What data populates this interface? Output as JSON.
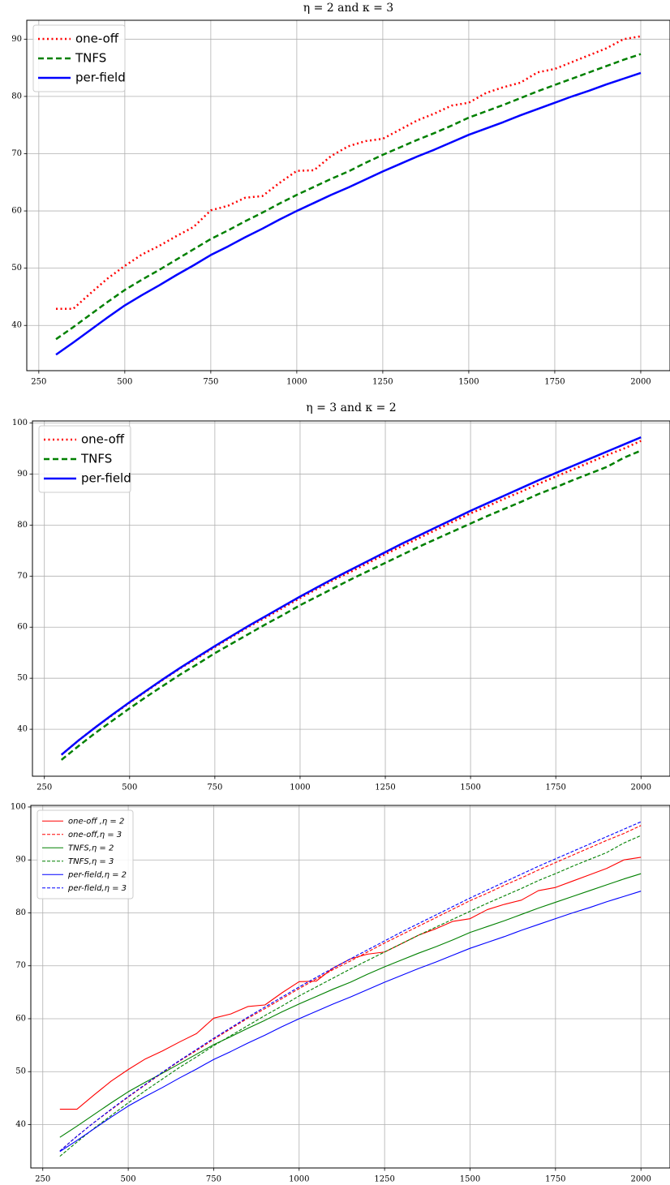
{
  "chart_data": [
    {
      "type": "line",
      "title": "η = 2 and κ = 3",
      "grid": true,
      "legend": "upper left",
      "x": [
        300,
        350,
        400,
        450,
        500,
        550,
        600,
        650,
        700,
        750,
        800,
        850,
        900,
        950,
        1000,
        1050,
        1100,
        1150,
        1200,
        1250,
        1300,
        1350,
        1400,
        1450,
        1500,
        1550,
        1600,
        1650,
        1700,
        1750,
        1800,
        1850,
        1900,
        1950,
        2000
      ],
      "xlim": [
        215,
        2085
      ],
      "xticks": [
        250,
        500,
        750,
        1000,
        1250,
        1500,
        1750,
        2000
      ],
      "ylim": [
        32.1,
        93.3
      ],
      "yticks": [
        40,
        50,
        60,
        70,
        80,
        90
      ],
      "series": [
        {
          "name": "one-off",
          "color": "#ff0000",
          "linestyle": "dotted",
          "values": [
            42.9,
            42.9,
            45.6,
            48.2,
            50.4,
            52.4,
            53.9,
            55.6,
            57.2,
            60.1,
            60.9,
            62.3,
            62.6,
            64.9,
            67.0,
            67.1,
            69.6,
            71.3,
            72.2,
            72.6,
            74.2,
            75.8,
            77.0,
            78.4,
            78.9,
            80.6,
            81.6,
            82.4,
            84.2,
            84.8,
            86.0,
            87.2,
            88.4,
            90.0,
            90.5
          ]
        },
        {
          "name": "TNFS",
          "color": "#008000",
          "linestyle": "dashed",
          "values": [
            37.6,
            39.7,
            41.9,
            44.1,
            46.2,
            48.0,
            49.7,
            51.5,
            53.3,
            55.1,
            56.6,
            58.2,
            59.7,
            61.3,
            62.8,
            64.2,
            65.6,
            66.9,
            68.4,
            69.8,
            71.1,
            72.4,
            73.6,
            74.9,
            76.3,
            77.4,
            78.5,
            79.7,
            80.9,
            82.0,
            83.1,
            84.2,
            85.3,
            86.4,
            87.4
          ]
        },
        {
          "name": "per-field",
          "color": "#0000ff",
          "linestyle": "solid",
          "values": [
            34.9,
            37.0,
            39.2,
            41.4,
            43.5,
            45.3,
            47.0,
            48.8,
            50.5,
            52.3,
            53.8,
            55.4,
            56.9,
            58.5,
            60.0,
            61.4,
            62.8,
            64.1,
            65.5,
            66.9,
            68.2,
            69.5,
            70.7,
            72.0,
            73.3,
            74.4,
            75.5,
            76.7,
            77.8,
            78.9,
            80.0,
            81.0,
            82.1,
            83.1,
            84.1
          ]
        }
      ]
    },
    {
      "type": "line",
      "title": "η = 3 and κ = 2",
      "grid": true,
      "legend": "upper left",
      "x": [
        300,
        350,
        400,
        450,
        500,
        550,
        600,
        650,
        700,
        750,
        800,
        850,
        900,
        950,
        1000,
        1050,
        1100,
        1150,
        1200,
        1250,
        1300,
        1350,
        1400,
        1450,
        1500,
        1550,
        1600,
        1650,
        1700,
        1750,
        1800,
        1850,
        1900,
        1950,
        2000
      ],
      "xlim": [
        215,
        2085
      ],
      "xticks": [
        250,
        500,
        750,
        1000,
        1250,
        1500,
        1750,
        2000
      ],
      "ylim": [
        30.8,
        100.4
      ],
      "yticks": [
        40,
        50,
        60,
        70,
        80,
        90,
        100
      ],
      "series": [
        {
          "name": "one-off",
          "color": "#ff0000",
          "linestyle": "dotted",
          "values": [
            35.0,
            37.8,
            40.4,
            42.8,
            45.2,
            47.5,
            49.8,
            52.0,
            54.0,
            56.1,
            58.1,
            60.1,
            61.9,
            63.8,
            65.7,
            67.5,
            69.3,
            70.9,
            72.6,
            74.3,
            75.9,
            77.5,
            79.1,
            80.7,
            82.3,
            83.7,
            85.2,
            86.6,
            88.1,
            89.5,
            90.9,
            92.3,
            93.7,
            95.0,
            96.5
          ]
        },
        {
          "name": "TNFS",
          "color": "#008000",
          "linestyle": "dashed",
          "values": [
            34.0,
            36.7,
            39.3,
            41.7,
            44.1,
            46.4,
            48.6,
            50.8,
            52.8,
            54.9,
            56.8,
            58.7,
            60.6,
            62.4,
            64.3,
            66.0,
            67.7,
            69.4,
            71.0,
            72.6,
            74.2,
            75.8,
            77.3,
            78.8,
            80.3,
            81.8,
            83.2,
            84.6,
            86.1,
            87.4,
            88.8,
            90.1,
            91.4,
            93.2,
            94.6
          ]
        },
        {
          "name": "per-field",
          "color": "#0000ff",
          "linestyle": "solid",
          "values": [
            35.0,
            37.8,
            40.4,
            42.9,
            45.3,
            47.6,
            49.9,
            52.1,
            54.2,
            56.3,
            58.3,
            60.3,
            62.2,
            64.1,
            66.0,
            67.8,
            69.6,
            71.3,
            73.0,
            74.7,
            76.4,
            78.0,
            79.6,
            81.2,
            82.8,
            84.3,
            85.8,
            87.3,
            88.8,
            90.2,
            91.6,
            93.0,
            94.4,
            95.8,
            97.2
          ]
        }
      ]
    },
    {
      "type": "line",
      "grid": true,
      "legend": "upper left",
      "x": [
        300,
        350,
        400,
        450,
        500,
        550,
        600,
        650,
        700,
        750,
        800,
        850,
        900,
        950,
        1000,
        1050,
        1100,
        1150,
        1200,
        1250,
        1300,
        1350,
        1400,
        1450,
        1500,
        1550,
        1600,
        1650,
        1700,
        1750,
        1800,
        1850,
        1900,
        1950,
        2000
      ],
      "xlim": [
        215,
        2085
      ],
      "xticks": [
        250,
        500,
        750,
        1000,
        1250,
        1500,
        1750,
        2000
      ],
      "ylim": [
        31.8,
        100.3
      ],
      "yticks": [
        40,
        50,
        60,
        70,
        80,
        90,
        100
      ],
      "series": [
        {
          "name": "one-off ,η = 2",
          "color": "#ff0000",
          "linestyle": "solid",
          "values": [
            42.9,
            42.9,
            45.6,
            48.2,
            50.4,
            52.4,
            53.9,
            55.6,
            57.2,
            60.1,
            60.9,
            62.3,
            62.6,
            64.9,
            67.0,
            67.1,
            69.6,
            71.3,
            72.2,
            72.6,
            74.2,
            75.8,
            77.0,
            78.4,
            78.9,
            80.6,
            81.6,
            82.4,
            84.2,
            84.8,
            86.0,
            87.2,
            88.4,
            90.0,
            90.5
          ]
        },
        {
          "name": "one-off,η = 3",
          "color": "#ff0000",
          "linestyle": "dashed",
          "values": [
            35.0,
            37.8,
            40.4,
            42.8,
            45.2,
            47.5,
            49.8,
            52.0,
            54.0,
            56.1,
            58.1,
            60.1,
            61.9,
            63.8,
            65.7,
            67.5,
            69.3,
            70.9,
            72.6,
            74.3,
            75.9,
            77.5,
            79.1,
            80.7,
            82.3,
            83.7,
            85.2,
            86.6,
            88.1,
            89.5,
            90.9,
            92.3,
            93.7,
            95.0,
            96.5
          ]
        },
        {
          "name": "TNFS,η = 2",
          "color": "#008000",
          "linestyle": "solid",
          "values": [
            37.6,
            39.7,
            41.9,
            44.1,
            46.2,
            48.0,
            49.7,
            51.5,
            53.3,
            55.1,
            56.6,
            58.2,
            59.7,
            61.3,
            62.8,
            64.2,
            65.6,
            66.9,
            68.4,
            69.8,
            71.1,
            72.4,
            73.6,
            74.9,
            76.3,
            77.4,
            78.5,
            79.7,
            80.9,
            82.0,
            83.1,
            84.2,
            85.3,
            86.4,
            87.4
          ]
        },
        {
          "name": "TNFS,η = 3",
          "color": "#008000",
          "linestyle": "dashed",
          "values": [
            34.0,
            36.7,
            39.3,
            41.7,
            44.1,
            46.4,
            48.6,
            50.8,
            52.8,
            54.9,
            56.8,
            58.7,
            60.6,
            62.4,
            64.3,
            66.0,
            67.7,
            69.4,
            71.0,
            72.6,
            74.2,
            75.8,
            77.3,
            78.8,
            80.3,
            81.8,
            83.2,
            84.6,
            86.1,
            87.4,
            88.8,
            90.1,
            91.4,
            93.2,
            94.6
          ]
        },
        {
          "name": "per-field,η = 2",
          "color": "#0000ff",
          "linestyle": "solid",
          "values": [
            34.9,
            37.0,
            39.2,
            41.4,
            43.5,
            45.3,
            47.0,
            48.8,
            50.5,
            52.3,
            53.8,
            55.4,
            56.9,
            58.5,
            60.0,
            61.4,
            62.8,
            64.1,
            65.5,
            66.9,
            68.2,
            69.5,
            70.7,
            72.0,
            73.3,
            74.4,
            75.5,
            76.7,
            77.8,
            78.9,
            80.0,
            81.0,
            82.1,
            83.1,
            84.1
          ]
        },
        {
          "name": "per-field,η = 3",
          "color": "#0000ff",
          "linestyle": "dashed",
          "values": [
            35.0,
            37.8,
            40.4,
            42.9,
            45.3,
            47.6,
            49.9,
            52.1,
            54.2,
            56.3,
            58.3,
            60.3,
            62.2,
            64.1,
            66.0,
            67.8,
            69.6,
            71.3,
            73.0,
            74.7,
            76.4,
            78.0,
            79.6,
            81.2,
            82.8,
            84.3,
            85.8,
            87.3,
            88.8,
            90.2,
            91.6,
            93.0,
            94.4,
            95.8,
            97.2
          ]
        }
      ]
    }
  ]
}
